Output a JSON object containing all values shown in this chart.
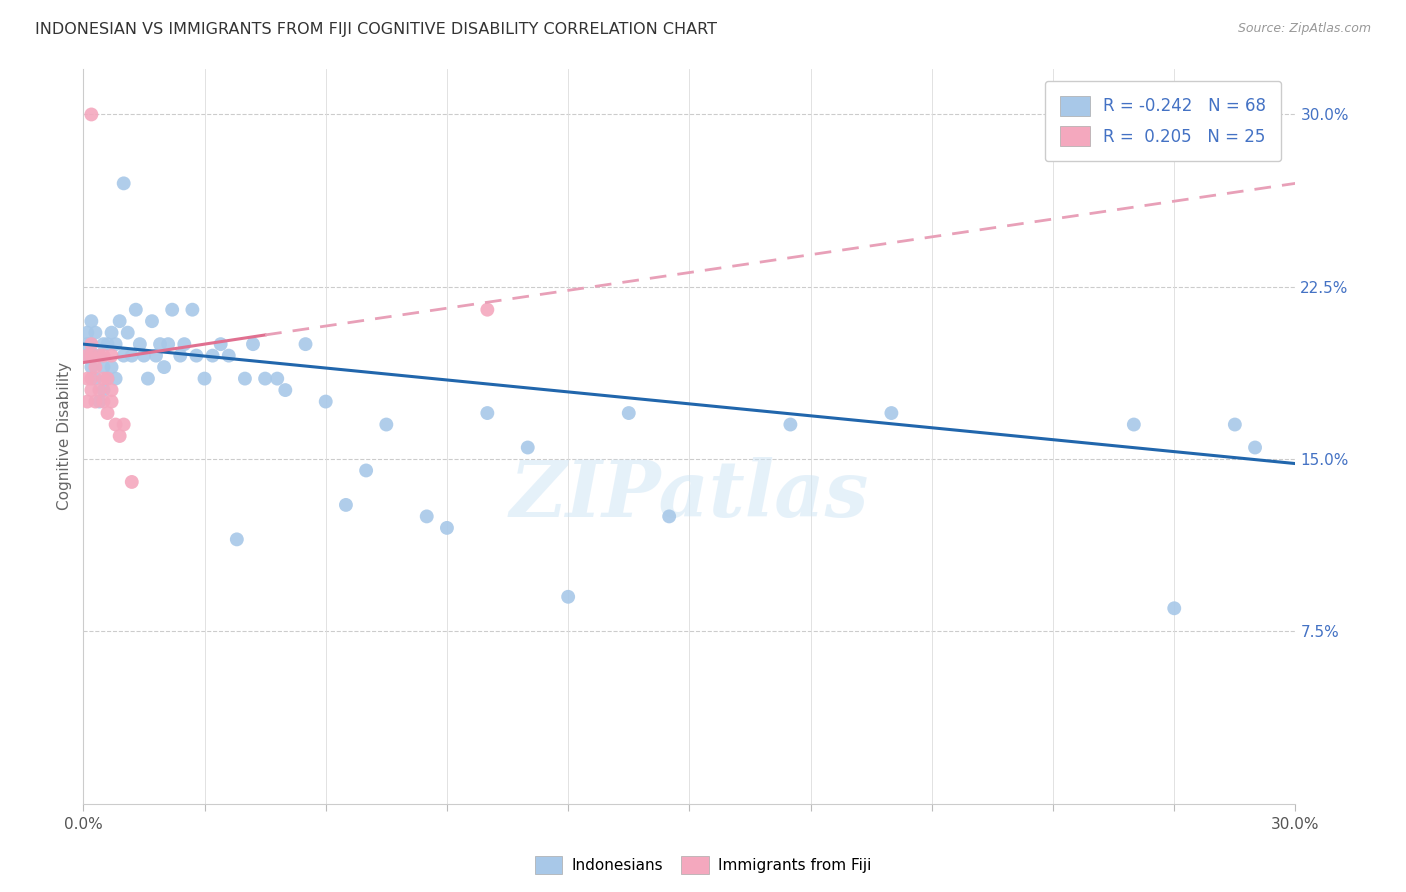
{
  "title": "INDONESIAN VS IMMIGRANTS FROM FIJI COGNITIVE DISABILITY CORRELATION CHART",
  "source": "Source: ZipAtlas.com",
  "ylabel": "Cognitive Disability",
  "xlim": [
    0.0,
    0.3
  ],
  "ylim": [
    0.0,
    0.32
  ],
  "x_ticks": [
    0.0,
    0.03,
    0.06,
    0.09,
    0.12,
    0.15,
    0.18,
    0.21,
    0.24,
    0.27,
    0.3
  ],
  "x_tick_labels": [
    "0.0%",
    "",
    "",
    "",
    "",
    "",
    "",
    "",
    "",
    "",
    "30.0%"
  ],
  "ytick_right_labels": [
    "30.0%",
    "22.5%",
    "15.0%",
    "7.5%"
  ],
  "ytick_right_values": [
    0.3,
    0.225,
    0.15,
    0.075
  ],
  "indonesian_color": "#a8c8e8",
  "fiji_color": "#f4a8be",
  "trend_blue": "#2166ac",
  "trend_pink_solid": "#e07090",
  "trend_pink_dash": "#e8a0b8",
  "watermark": "ZIPatlas",
  "legend_items": [
    {
      "label": "R = -0.242   N = 68",
      "color": "#a8c8e8"
    },
    {
      "label": "R =  0.205   N = 25",
      "color": "#f4a8be"
    }
  ],
  "indonesian_x": [
    0.001,
    0.001,
    0.001,
    0.002,
    0.002,
    0.002,
    0.002,
    0.003,
    0.003,
    0.003,
    0.004,
    0.004,
    0.005,
    0.005,
    0.005,
    0.006,
    0.006,
    0.007,
    0.007,
    0.008,
    0.008,
    0.009,
    0.01,
    0.01,
    0.011,
    0.012,
    0.013,
    0.014,
    0.015,
    0.016,
    0.017,
    0.018,
    0.019,
    0.02,
    0.021,
    0.022,
    0.024,
    0.025,
    0.027,
    0.028,
    0.03,
    0.032,
    0.034,
    0.036,
    0.038,
    0.04,
    0.042,
    0.045,
    0.048,
    0.05,
    0.055,
    0.06,
    0.065,
    0.07,
    0.075,
    0.085,
    0.09,
    0.1,
    0.11,
    0.12,
    0.135,
    0.145,
    0.175,
    0.2,
    0.26,
    0.27,
    0.285,
    0.29
  ],
  "indonesian_y": [
    0.195,
    0.2,
    0.205,
    0.19,
    0.195,
    0.2,
    0.21,
    0.185,
    0.195,
    0.205,
    0.175,
    0.195,
    0.18,
    0.19,
    0.2,
    0.185,
    0.2,
    0.19,
    0.205,
    0.185,
    0.2,
    0.21,
    0.27,
    0.195,
    0.205,
    0.195,
    0.215,
    0.2,
    0.195,
    0.185,
    0.21,
    0.195,
    0.2,
    0.19,
    0.2,
    0.215,
    0.195,
    0.2,
    0.215,
    0.195,
    0.185,
    0.195,
    0.2,
    0.195,
    0.115,
    0.185,
    0.2,
    0.185,
    0.185,
    0.18,
    0.2,
    0.175,
    0.13,
    0.145,
    0.165,
    0.125,
    0.12,
    0.17,
    0.155,
    0.09,
    0.17,
    0.125,
    0.165,
    0.17,
    0.165,
    0.085,
    0.165,
    0.155
  ],
  "fiji_x": [
    0.001,
    0.001,
    0.001,
    0.002,
    0.002,
    0.002,
    0.002,
    0.003,
    0.003,
    0.004,
    0.004,
    0.005,
    0.005,
    0.005,
    0.006,
    0.006,
    0.007,
    0.007,
    0.007,
    0.008,
    0.009,
    0.01,
    0.012,
    0.1,
    0.002
  ],
  "fiji_y": [
    0.175,
    0.185,
    0.195,
    0.18,
    0.185,
    0.195,
    0.2,
    0.175,
    0.19,
    0.18,
    0.195,
    0.175,
    0.185,
    0.195,
    0.17,
    0.185,
    0.175,
    0.18,
    0.195,
    0.165,
    0.16,
    0.165,
    0.14,
    0.215,
    0.3
  ],
  "trend_indo_x0": 0.0,
  "trend_indo_y0": 0.2,
  "trend_indo_x1": 0.3,
  "trend_indo_y1": 0.148,
  "trend_fiji_solid_x0": 0.0,
  "trend_fiji_solid_y0": 0.192,
  "trend_fiji_solid_x1": 0.045,
  "trend_fiji_solid_y1": 0.204,
  "trend_fiji_dash_x0": 0.045,
  "trend_fiji_dash_y0": 0.204,
  "trend_fiji_dash_x1": 0.3,
  "trend_fiji_dash_y1": 0.27
}
